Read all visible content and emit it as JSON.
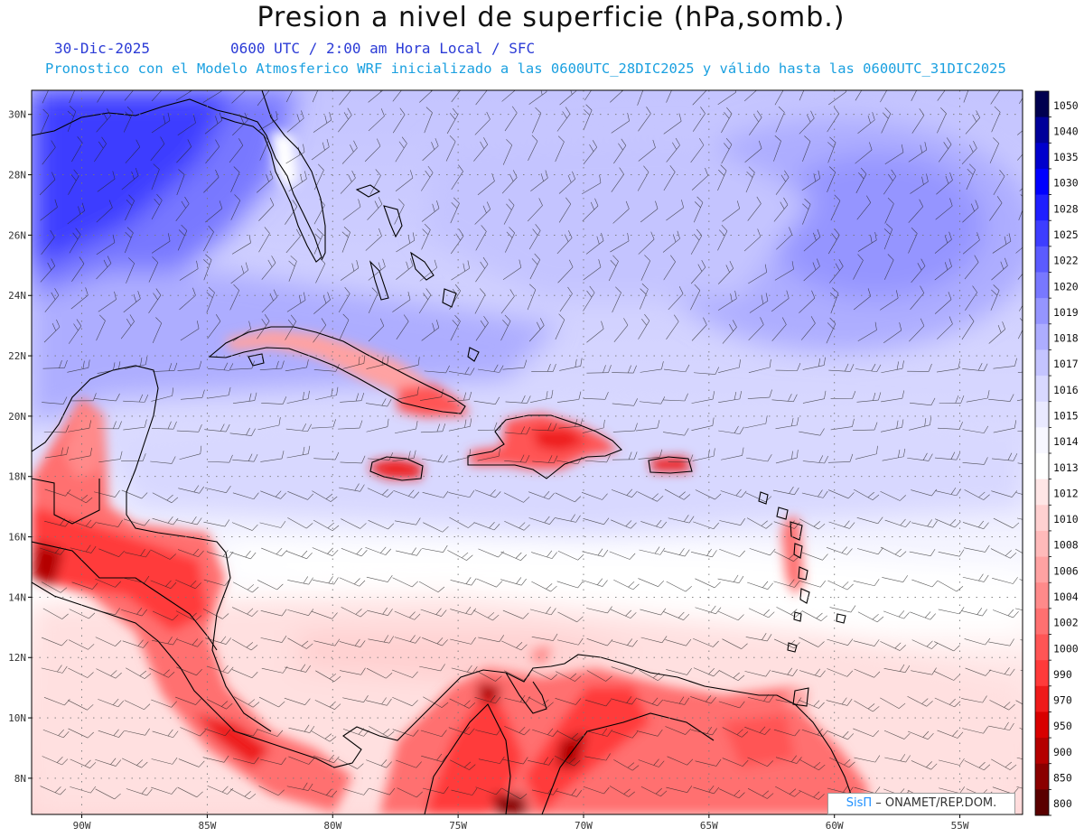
{
  "header": {
    "title": "Presion a nivel de superficie (hPa,somb.)",
    "date": "30-Dic-2025",
    "time": "0600 UTC / 2:00 am Hora Local / SFC",
    "model_info": "Pronostico con el Modelo Atmosferico WRF inicializado a las 0600UTC_28DIC2025 y válido hasta las  0600UTC_31DIC2025"
  },
  "map": {
    "lon_range": [
      -92,
      -52.5
    ],
    "lat_range": [
      6.8,
      30.8
    ],
    "lat_ticks": [
      "30N",
      "28N",
      "26N",
      "24N",
      "22N",
      "20N",
      "18N",
      "16N",
      "14N",
      "12N",
      "10N",
      "8N"
    ],
    "lon_ticks": [
      "90W",
      "85W",
      "80W",
      "75W",
      "70W",
      "65W",
      "60W",
      "55W"
    ],
    "gridlines": true
  },
  "colorbar": {
    "levels": [
      "1050",
      "1040",
      "1035",
      "1030",
      "1028",
      "1025",
      "1022",
      "1020",
      "1019",
      "1018",
      "1017",
      "1016",
      "1015",
      "1014",
      "1013",
      "1012",
      "1010",
      "1008",
      "1006",
      "1004",
      "1002",
      "1000",
      "990",
      "970",
      "950",
      "900",
      "850",
      "800"
    ],
    "colors": [
      "#00004f",
      "#00009a",
      "#0000cd",
      "#0000ff",
      "#1f1fff",
      "#3d3dff",
      "#5b5bff",
      "#7878ff",
      "#9595ff",
      "#adadff",
      "#c4c4ff",
      "#d8d8ff",
      "#e9e9ff",
      "#f7f7ff",
      "#ffffff",
      "#ffe6e6",
      "#ffd0d0",
      "#ffbaba",
      "#ffa2a2",
      "#ff8a8a",
      "#ff7070",
      "#ff5555",
      "#ff3a3a",
      "#ee1a1a",
      "#d80000",
      "#b40000",
      "#8a0000",
      "#5a0000"
    ]
  },
  "credit": {
    "brand": "SisΠ",
    "org": " – ONAMET/REP.DOM."
  }
}
